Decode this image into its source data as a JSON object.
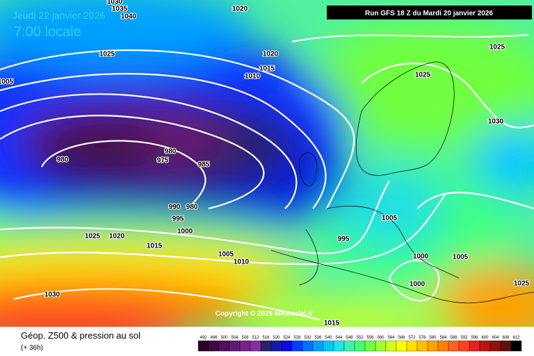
{
  "header": {
    "date": "Jeudi 22 janvier 2026",
    "time": "7:00 locale",
    "run": "Run GFS 18 Z du Mardi 20 janvier 2026"
  },
  "copyright": "Copyright © 2026 Meteociel.fr",
  "footer": {
    "title": "Géop. Z500 & pression au sol",
    "lead": "(+ 36h)"
  },
  "legend": {
    "levels": [
      492,
      496,
      500,
      504,
      508,
      512,
      516,
      520,
      524,
      528,
      532,
      536,
      540,
      544,
      548,
      552,
      556,
      560,
      564,
      568,
      572,
      576,
      580,
      584,
      588,
      592,
      596,
      600,
      604,
      608,
      612
    ],
    "colors": [
      "#2b0024",
      "#3f0a44",
      "#520f5e",
      "#631a72",
      "#742386",
      "#85309a",
      "#262466",
      "#1818b0",
      "#0a0ae8",
      "#0040ff",
      "#0070ff",
      "#00a0ff",
      "#00c8ff",
      "#20e4e8",
      "#40f0b0",
      "#40ff70",
      "#70ff40",
      "#a0ff30",
      "#d0ff20",
      "#ffff00",
      "#ffe000",
      "#ffc000",
      "#ffa000",
      "#ff8000",
      "#ff6020",
      "#ff4020",
      "#e82020",
      "#c01010",
      "#901010",
      "#601010",
      "#000000"
    ]
  },
  "isobars": [
    "1030",
    "1035",
    "1040",
    "1020",
    "1025",
    "1005",
    "1020",
    "1015",
    "1010",
    "1025",
    "1025",
    "1030",
    "980",
    "975",
    "980",
    "985",
    "990",
    "980",
    "995",
    "1000",
    "1025",
    "1020",
    "1015",
    "1005",
    "1010",
    "995",
    "1005",
    "1000",
    "1005",
    "1000",
    "1030",
    "1015",
    "1025"
  ]
}
